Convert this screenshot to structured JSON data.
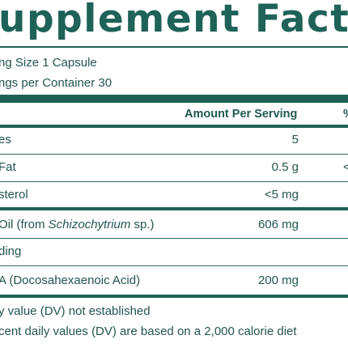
{
  "title": "upplement Fact",
  "serving_size": "ng Size 1 Capsule",
  "servings_per_container": "ngs per Container 30",
  "column_header": "Amount Per Serving",
  "column_header_dv": "%",
  "rows": [
    {
      "label": "es",
      "value": "5",
      "dv": ""
    },
    {
      "label": "Fat",
      "value": "0.5 g",
      "dv": "<"
    },
    {
      "label": "sterol",
      "value": "<5 mg",
      "dv": ""
    },
    {
      "label_prefix": "Oil (from ",
      "label_italic": "Schizochytrium",
      "label_suffix": " sp.)",
      "value": "606 mg",
      "dv": "*"
    },
    {
      "label": "ding",
      "value": "",
      "dv": ""
    },
    {
      "label": "A (Docosahexaenoic Acid)",
      "value": "200 mg",
      "dv": "*"
    }
  ],
  "footnote_1": "y value (DV) not established",
  "footnote_2": "cent daily values (DV) are based on a 2,000 calorie diet",
  "colors": {
    "brand_green": "#1f6156",
    "text": "#24554e"
  }
}
